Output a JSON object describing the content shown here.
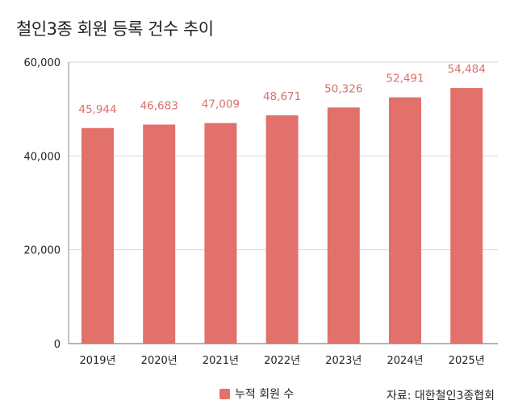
{
  "chart_data": {
    "type": "bar",
    "title": "철인3종 회원 등록 건수 추이",
    "categories": [
      "2019년",
      "2020년",
      "2021년",
      "2022년",
      "2023년",
      "2024년",
      "2025년"
    ],
    "series": [
      {
        "name": "누적 회원 수",
        "values": [
          45944,
          46683,
          47009,
          48671,
          50326,
          52491,
          54484
        ]
      }
    ],
    "data_labels": [
      "45,944",
      "46,683",
      "47,009",
      "48,671",
      "50,326",
      "52,491",
      "54,484"
    ],
    "yticks": [
      0,
      20000,
      40000,
      60000
    ],
    "ytick_labels": [
      "0",
      "20,000",
      "40,000",
      "60,000"
    ],
    "ylim": [
      0,
      60000
    ],
    "xlabel": "",
    "ylabel": "",
    "grid": true,
    "legend_position": "bottom-center",
    "bar_color": "#e2716b",
    "label_color": "#d9706b",
    "source": "자료: 대한철인3종협회"
  }
}
